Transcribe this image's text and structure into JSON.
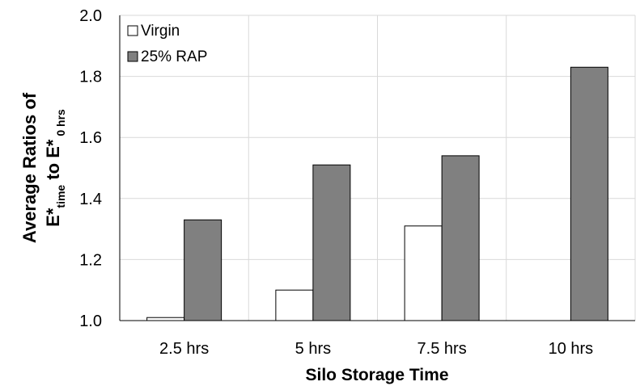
{
  "chart_data": {
    "type": "bar",
    "categories": [
      "2.5 hrs",
      "5 hrs",
      "7.5 hrs",
      "10 hrs"
    ],
    "series": [
      {
        "name": "Virgin",
        "values": [
          1.01,
          1.1,
          1.31,
          null
        ],
        "color": "#ffffff"
      },
      {
        "name": "25% RAP",
        "values": [
          1.33,
          1.51,
          1.54,
          1.83
        ],
        "color": "#808080"
      }
    ],
    "title": "",
    "xlabel": "Silo Storage Time",
    "ylabel": {
      "line1": "Average Ratios of",
      "e1": "E*",
      "sub1": "time",
      "to": " to ",
      "e2": "E*",
      "sub2": " 0 hrs"
    },
    "ylim": [
      1.0,
      2.0
    ],
    "yticks": [
      "1.0",
      "1.2",
      "1.4",
      "1.6",
      "1.8",
      "2.0"
    ],
    "grid": true,
    "legend_position": "top-left"
  }
}
